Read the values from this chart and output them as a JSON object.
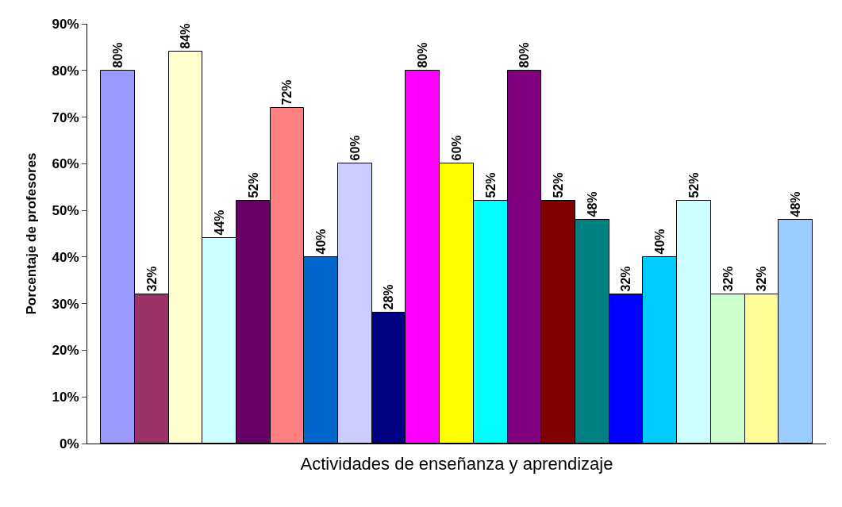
{
  "chart_data": {
    "type": "bar",
    "xlabel": "Actividades de enseñanza y aprendizaje",
    "ylabel": "Porcentaje de profesores",
    "categories": [
      null,
      null,
      null,
      null,
      null,
      null,
      null,
      null,
      null,
      null,
      null,
      null,
      null,
      null,
      null,
      null,
      null,
      null,
      null,
      null,
      null
    ],
    "values": [
      80,
      32,
      84,
      44,
      52,
      72,
      40,
      60,
      28,
      80,
      60,
      52,
      80,
      52,
      48,
      32,
      40,
      52,
      32,
      32,
      48
    ],
    "value_labels": [
      "80%",
      "32%",
      "84%",
      "44%",
      "52%",
      "72%",
      "40%",
      "60%",
      "28%",
      "80%",
      "60%",
      "52%",
      "80%",
      "52%",
      "48%",
      "32%",
      "40%",
      "52%",
      "32%",
      "32%",
      "48%"
    ],
    "colors": [
      "#9999ff",
      "#993366",
      "#ffffcc",
      "#ccffff",
      "#660066",
      "#ff8080",
      "#0066cc",
      "#ccccff",
      "#000080",
      "#ff00ff",
      "#ffff00",
      "#00ffff",
      "#800080",
      "#800000",
      "#008080",
      "#0000ff",
      "#00ccff",
      "#ccffff",
      "#ccffcc",
      "#ffff99",
      "#99ccff"
    ],
    "ylim": [
      0,
      90
    ],
    "yticks": [
      {
        "value": 0,
        "label": "0%"
      },
      {
        "value": 10,
        "label": "10%"
      },
      {
        "value": 20,
        "label": "20%"
      },
      {
        "value": 30,
        "label": "30%"
      },
      {
        "value": 40,
        "label": "40%"
      },
      {
        "value": 50,
        "label": "50%"
      },
      {
        "value": 60,
        "label": "60%"
      },
      {
        "value": 70,
        "label": "70%"
      },
      {
        "value": 80,
        "label": "80%"
      },
      {
        "value": 90,
        "label": "90%"
      }
    ]
  }
}
